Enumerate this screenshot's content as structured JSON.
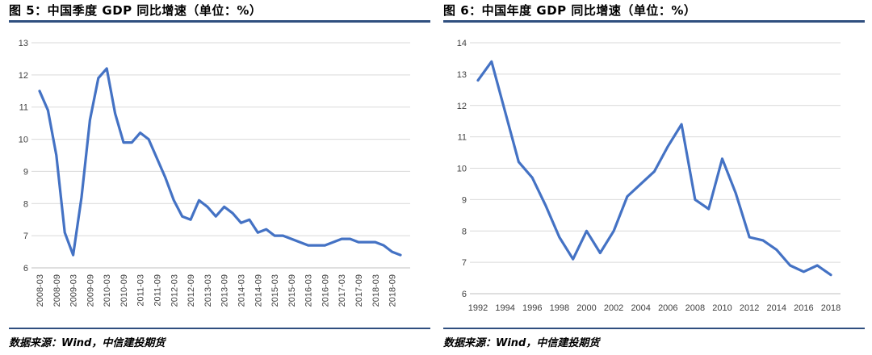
{
  "colors": {
    "line": "#4472c4",
    "grid": "#d9d9d9",
    "rule": "#2f4f7f"
  },
  "charts": [
    {
      "title": "图 5：中国季度 GDP 同比增速（单位：%）",
      "source": "数据来源：Wind，中信建投期货"
    },
    {
      "title": "图 6：中国年度 GDP 同比增速（单位：%）",
      "source": "数据来源：Wind，中信建投期货"
    }
  ],
  "chart_data": [
    {
      "type": "line",
      "title": "图 5：中国季度 GDP 同比增速（单位：%）",
      "xlabel": "",
      "ylabel": "",
      "ylim": [
        6,
        13
      ],
      "yticks": [
        6,
        7,
        8,
        9,
        10,
        11,
        12,
        13
      ],
      "grid": true,
      "legend": "none",
      "x": [
        "2008-03",
        "2008-06",
        "2008-09",
        "2008-12",
        "2009-03",
        "2009-06",
        "2009-09",
        "2009-12",
        "2010-03",
        "2010-06",
        "2010-09",
        "2010-12",
        "2011-03",
        "2011-06",
        "2011-09",
        "2011-12",
        "2012-03",
        "2012-06",
        "2012-09",
        "2012-12",
        "2013-03",
        "2013-06",
        "2013-09",
        "2013-12",
        "2014-03",
        "2014-06",
        "2014-09",
        "2014-12",
        "2015-03",
        "2015-06",
        "2015-09",
        "2015-12",
        "2016-03",
        "2016-06",
        "2016-09",
        "2016-12",
        "2017-03",
        "2017-06",
        "2017-09",
        "2017-12",
        "2018-03",
        "2018-06",
        "2018-09",
        "2018-12"
      ],
      "xtick_labels": [
        "2008-03",
        "2008-09",
        "2009-03",
        "2009-09",
        "2010-03",
        "2010-09",
        "2011-03",
        "2011-09",
        "2012-03",
        "2012-09",
        "2013-03",
        "2013-09",
        "2014-03",
        "2014-09",
        "2015-03",
        "2015-09",
        "2016-03",
        "2016-09",
        "2017-03",
        "2017-09",
        "2018-03",
        "2018-09"
      ],
      "series": [
        {
          "name": "季度GDP同比",
          "values": [
            11.5,
            10.9,
            9.5,
            7.1,
            6.4,
            8.2,
            10.6,
            11.9,
            12.2,
            10.8,
            9.9,
            9.9,
            10.2,
            10.0,
            9.4,
            8.8,
            8.1,
            7.6,
            7.5,
            8.1,
            7.9,
            7.6,
            7.9,
            7.7,
            7.4,
            7.5,
            7.1,
            7.2,
            7.0,
            7.0,
            6.9,
            6.8,
            6.7,
            6.7,
            6.7,
            6.8,
            6.9,
            6.9,
            6.8,
            6.8,
            6.8,
            6.7,
            6.5,
            6.4
          ]
        }
      ]
    },
    {
      "type": "line",
      "title": "图 6：中国年度 GDP 同比增速（单位：%）",
      "xlabel": "",
      "ylabel": "",
      "ylim": [
        6,
        14
      ],
      "yticks": [
        6,
        7,
        8,
        9,
        10,
        11,
        12,
        13,
        14
      ],
      "grid": true,
      "legend": "none",
      "x": [
        "1992",
        "1993",
        "1994",
        "1995",
        "1996",
        "1997",
        "1998",
        "1999",
        "2000",
        "2001",
        "2002",
        "2003",
        "2004",
        "2005",
        "2006",
        "2007",
        "2008",
        "2009",
        "2010",
        "2011",
        "2012",
        "2013",
        "2014",
        "2015",
        "2016",
        "2017",
        "2018"
      ],
      "xtick_labels": [
        "1992",
        "1994",
        "1996",
        "1998",
        "2000",
        "2002",
        "2004",
        "2006",
        "2008",
        "2010",
        "2012",
        "2014",
        "2016",
        "2018"
      ],
      "series": [
        {
          "name": "年度GDP同比",
          "values": [
            12.8,
            13.4,
            11.8,
            10.2,
            9.7,
            8.8,
            7.8,
            7.1,
            8.0,
            7.3,
            8.0,
            9.1,
            9.5,
            9.9,
            10.7,
            11.4,
            9.0,
            8.7,
            10.3,
            9.2,
            7.8,
            7.7,
            7.4,
            6.9,
            6.7,
            6.9,
            6.6
          ]
        }
      ]
    }
  ]
}
